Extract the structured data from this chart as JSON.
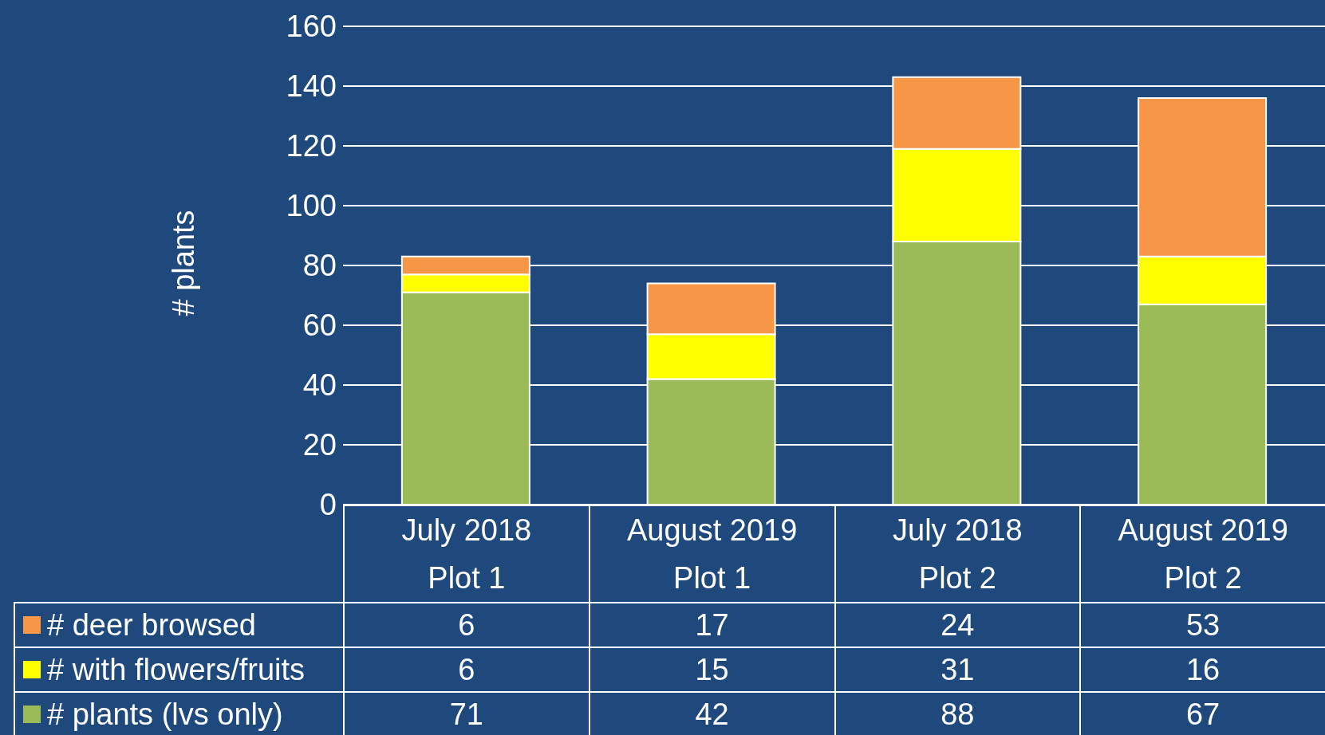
{
  "chart_data": {
    "type": "bar",
    "ylabel": "# plants",
    "stacked": true,
    "categories": [
      "July 2018\nPlot 1",
      "August 2019\nPlot 1",
      "July 2018\nPlot 2",
      "August 2019\nPlot 2"
    ],
    "series": [
      {
        "name": "# plants (lvs only)",
        "color": "#9bbb59",
        "values": [
          71,
          42,
          88,
          67
        ]
      },
      {
        "name": "# with flowers/fruits",
        "color": "#ffff00",
        "values": [
          6,
          15,
          31,
          16
        ]
      },
      {
        "name": "# deer browsed",
        "color": "#f79646",
        "values": [
          6,
          17,
          24,
          53
        ]
      }
    ],
    "ylim": [
      0,
      160
    ],
    "yticks": [
      0,
      20,
      40,
      60,
      80,
      100,
      120,
      140,
      160
    ],
    "grid": "y",
    "legend": "bottom",
    "data_labels": true
  }
}
